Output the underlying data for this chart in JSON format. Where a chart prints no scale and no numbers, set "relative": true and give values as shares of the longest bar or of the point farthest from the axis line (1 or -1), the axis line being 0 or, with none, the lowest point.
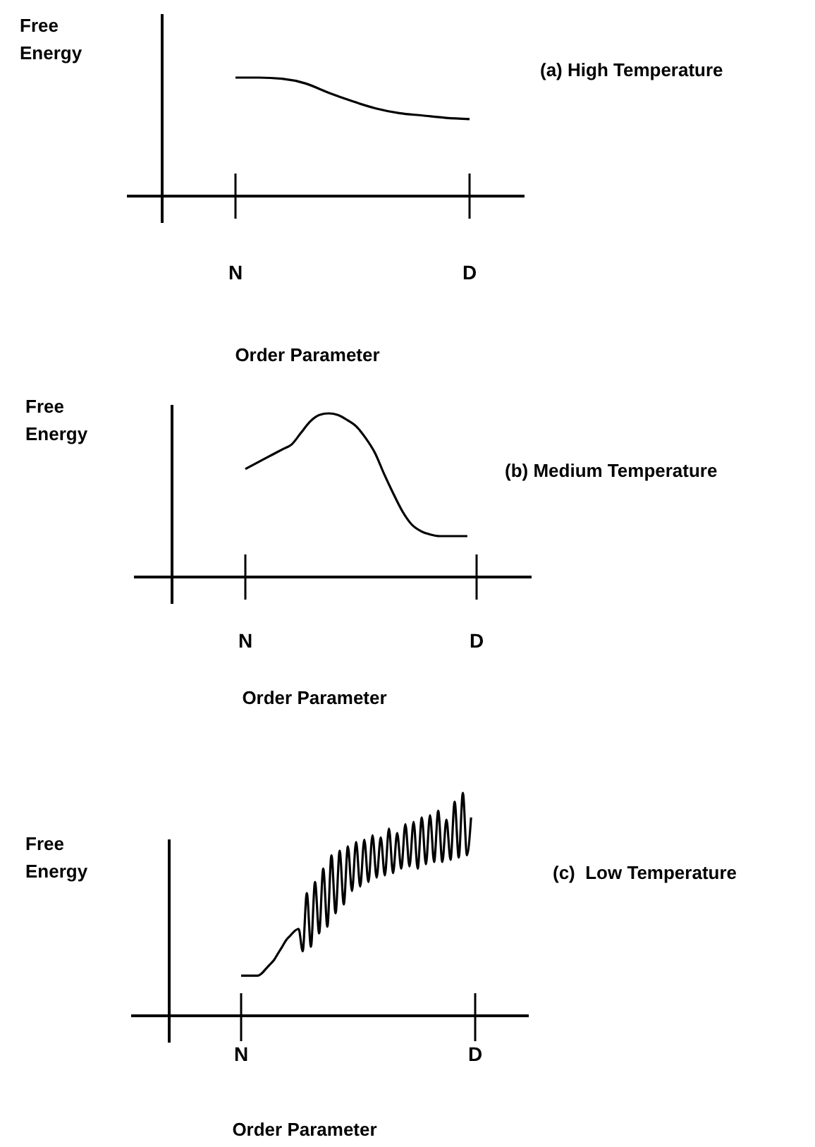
{
  "chart_data": [
    {
      "type": "line",
      "annotations": [
        "(a) High Temperature"
      ],
      "xlabel": "Order Parameter",
      "ylabel": "Free Energy",
      "relative": true,
      "categories": [
        null,
        null,
        null,
        "N",
        null,
        null,
        null,
        null,
        null,
        null,
        null,
        null,
        null,
        "D",
        null,
        null
      ],
      "series": [
        {
          "color": "#000000",
          "values": [
            null,
            null,
            null,
            1,
            1,
            0.99,
            0.95,
            0.87,
            0.8,
            0.74,
            0.7,
            0.68,
            0.66,
            0.65,
            null,
            null
          ]
        }
      ]
    },
    {
      "type": "line",
      "annotations": [
        "(b) Medium Temperature"
      ],
      "xlabel": "Order Parameter",
      "ylabel": "Free Energy",
      "relative": true,
      "categories": [
        null,
        null,
        null,
        null,
        null,
        null,
        null,
        "N",
        null,
        null,
        null,
        null,
        null,
        null,
        null,
        null,
        null,
        null,
        null,
        null,
        null,
        null,
        null,
        null,
        null,
        null,
        null,
        null,
        null,
        null,
        null,
        null,
        "D",
        null,
        null,
        null,
        null,
        null
      ],
      "series": [
        {
          "color": "#000000",
          "values": [
            null,
            null,
            null,
            null,
            null,
            null,
            null,
            0.66,
            0.69,
            0.72,
            0.75,
            0.78,
            0.81,
            0.88,
            0.95,
            0.99,
            1,
            0.99,
            0.96,
            0.92,
            0.85,
            0.76,
            0.63,
            0.51,
            0.4,
            0.32,
            0.28,
            0.26,
            0.25,
            0.25,
            0.25,
            0.25,
            null,
            null,
            null,
            null,
            null,
            null
          ]
        }
      ]
    },
    {
      "type": "line",
      "annotations": [
        "(c)  Low Temperature"
      ],
      "xlabel": "Order Parameter",
      "ylabel": "Free Energy",
      "relative": true,
      "categories": [
        null,
        null,
        null,
        null,
        null,
        null,
        null,
        null,
        null,
        null,
        null,
        null,
        null,
        null,
        null,
        null,
        "N",
        null,
        null,
        null,
        null,
        null,
        null,
        null,
        null,
        null,
        null,
        null,
        null,
        null,
        null,
        null,
        null,
        null,
        null,
        null,
        null,
        null,
        null,
        null,
        null,
        null,
        null,
        null,
        null,
        null,
        null,
        null,
        null,
        null,
        null,
        null,
        null,
        null,
        null,
        null,
        null,
        null,
        null,
        null,
        null,
        null,
        null,
        null,
        null,
        null,
        null,
        null,
        null,
        null,
        null,
        null,
        null,
        "D",
        null,
        null,
        null,
        null,
        null,
        null,
        null,
        null,
        null,
        null,
        null,
        null
      ],
      "series": [
        {
          "color": "#000000",
          "values": [
            null,
            null,
            null,
            null,
            null,
            null,
            null,
            null,
            null,
            null,
            null,
            null,
            null,
            null,
            null,
            null,
            0.18,
            0.18,
            0.18,
            0.18,
            0.18,
            0.19,
            0.21,
            0.23,
            0.25,
            0.28,
            0.31,
            0.34,
            0.36,
            0.38,
            0.39,
            0.29,
            0.55,
            0.31,
            0.6,
            0.37,
            0.66,
            0.4,
            0.72,
            0.46,
            0.74,
            0.5,
            0.76,
            0.56,
            0.78,
            0.58,
            0.79,
            0.6,
            0.81,
            0.62,
            0.8,
            0.63,
            0.84,
            0.64,
            0.82,
            0.66,
            0.86,
            0.67,
            0.87,
            0.66,
            0.89,
            0.68,
            0.9,
            0.69,
            0.92,
            0.69,
            0.88,
            0.7,
            0.96,
            0.71,
            1,
            0.72,
            0.89,
            null,
            null,
            null,
            null,
            null,
            null,
            null,
            null,
            null,
            null,
            null,
            null,
            null
          ]
        }
      ]
    }
  ]
}
